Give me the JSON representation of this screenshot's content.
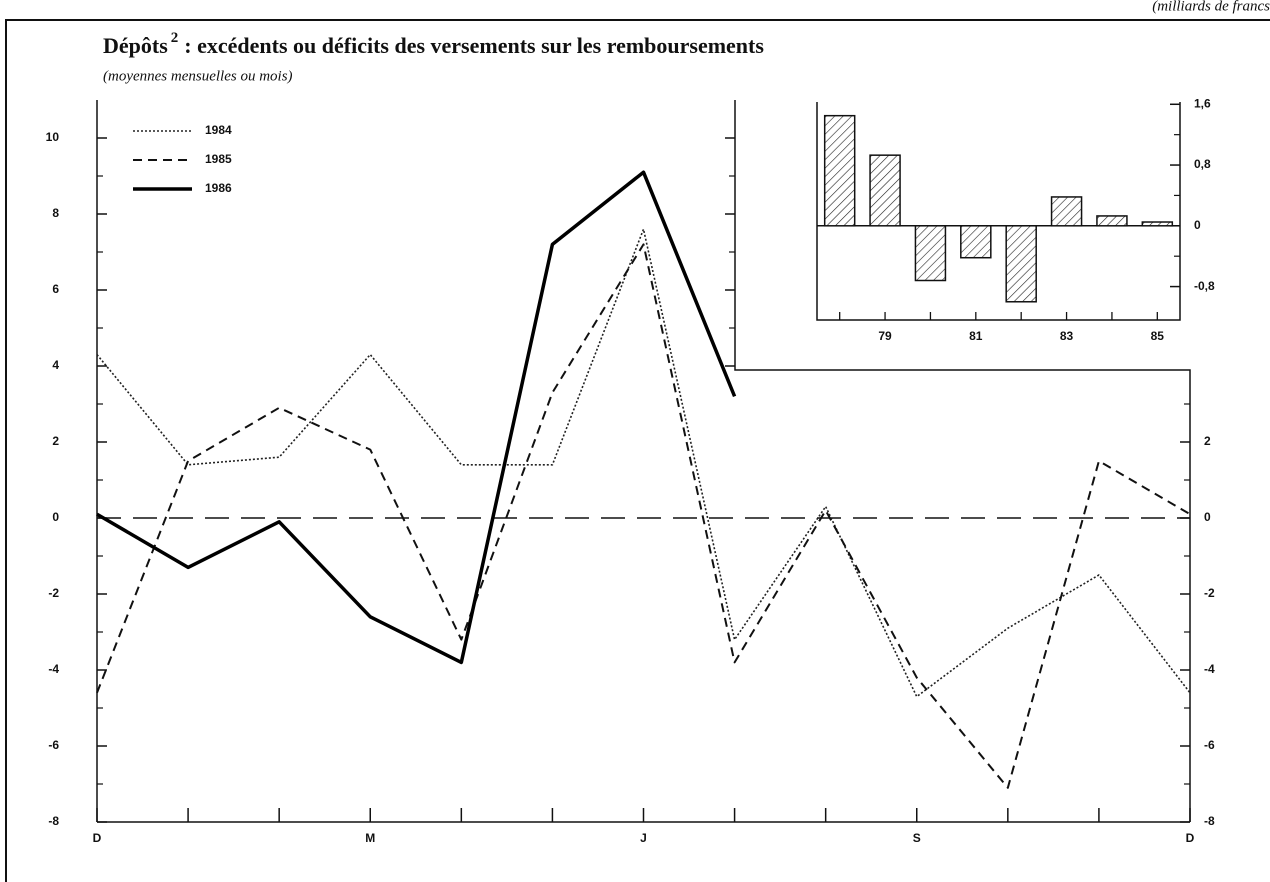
{
  "chart_data": [
    {
      "type": "line",
      "title": "Dépôts",
      "title_sup": "2",
      "title_rest": ": excédents ou déficits des versements sur les remboursements",
      "subtitle": "(moyennes mensuelles ou mois)",
      "unit_note": "(milliards de francs",
      "categories": [
        "D",
        null,
        null,
        "M",
        null,
        null,
        "J",
        null,
        null,
        "S",
        null,
        null,
        "D"
      ],
      "series": [
        {
          "name": "1984",
          "color": "#222",
          "style": "dotted",
          "values": [
            4.3,
            1.4,
            1.6,
            4.3,
            1.4,
            1.4,
            7.6,
            -3.2,
            0.3,
            -4.7,
            -2.9,
            -1.5,
            -4.6
          ]
        },
        {
          "name": "1985",
          "color": "#111",
          "style": "dashed",
          "values": [
            -4.6,
            1.5,
            2.9,
            1.8,
            -3.2,
            3.3,
            7.2,
            -3.8,
            0.2,
            -4.2,
            -7.1,
            1.5,
            0.1
          ]
        },
        {
          "name": "1986",
          "color": "#000",
          "style": "solid",
          "values": [
            0.1,
            -1.3,
            -0.1,
            -2.6,
            -3.8,
            7.2,
            9.1,
            3.2,
            null,
            null,
            null,
            null,
            null
          ]
        }
      ],
      "ylim": [
        -8,
        11
      ],
      "yticks": [
        -8,
        -6,
        -4,
        -2,
        0,
        2,
        4,
        6,
        8,
        10
      ],
      "zero_line": true,
      "legend": "upper left"
    },
    {
      "type": "bar",
      "categories": [
        null,
        "79",
        null,
        "81",
        null,
        "83",
        null,
        "85"
      ],
      "values": [
        1.45,
        0.93,
        -0.72,
        -0.42,
        -1.0,
        0.38,
        0.13,
        0.05
      ],
      "ylim": [
        -1.24,
        1.63
      ],
      "yticks": [
        {
          "value": -0.8,
          "label": "-0,8"
        },
        0,
        {
          "value": 0.8,
          "label": "0,8"
        },
        {
          "value": 1.6,
          "label": "1,6"
        }
      ],
      "hatch": true
    }
  ]
}
